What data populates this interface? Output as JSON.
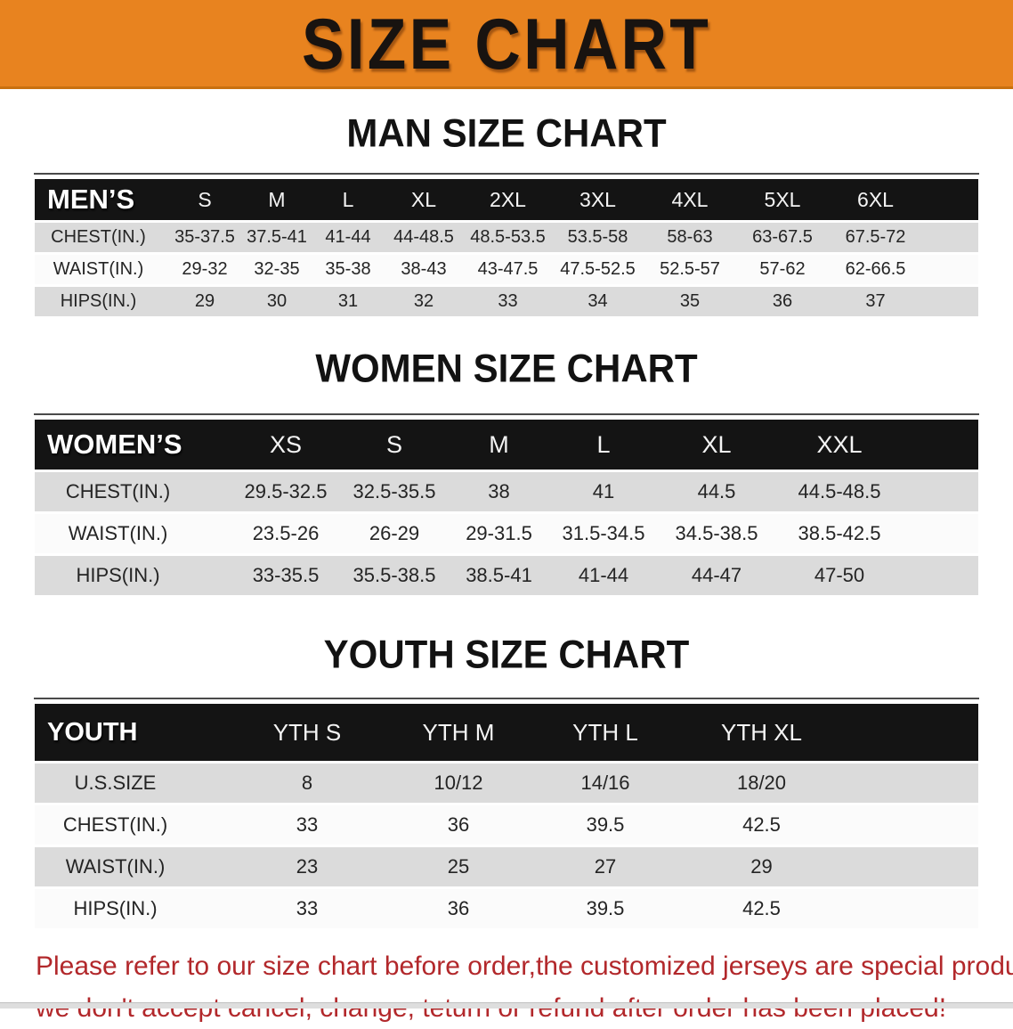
{
  "banner": {
    "title": "SIZE CHART",
    "background_color": "#E8831F",
    "title_color": "#181310"
  },
  "colors": {
    "table_header_bg": "#141414",
    "row_shade": "#DBDBDB",
    "disclaimer_red": "#B2282B"
  },
  "sections": [
    {
      "id": "men",
      "heading": "MAN SIZE CHART",
      "table": {
        "header_label": "MEN’S",
        "sizes": [
          "S",
          "M",
          "L",
          "XL",
          "2XL",
          "3XL",
          "4XL",
          "5XL",
          "6XL"
        ],
        "rows": [
          {
            "label": "CHEST(IN.)",
            "values": [
              "35-37.5",
              "37.5-41",
              "41-44",
              "44-48.5",
              "48.5-53.5",
              "53.5-58",
              "58-63",
              "63-67.5",
              "67.5-72"
            ]
          },
          {
            "label": "WAIST(IN.)",
            "values": [
              "29-32",
              "32-35",
              "35-38",
              "38-43",
              "43-47.5",
              "47.5-52.5",
              "52.5-57",
              "57-62",
              "62-66.5"
            ]
          },
          {
            "label": "HIPS(IN.)",
            "values": [
              "29",
              "30",
              "31",
              "32",
              "33",
              "34",
              "35",
              "36",
              "37"
            ]
          }
        ]
      }
    },
    {
      "id": "women",
      "heading": "WOMEN SIZE CHART",
      "table": {
        "header_label": "WOMEN’S",
        "sizes": [
          "XS",
          "S",
          "M",
          "L",
          "XL",
          "XXL"
        ],
        "rows": [
          {
            "label": "CHEST(IN.)",
            "values": [
              "29.5-32.5",
              "32.5-35.5",
              "38",
              "41",
              "44.5",
              "44.5-48.5"
            ]
          },
          {
            "label": "WAIST(IN.)",
            "values": [
              "23.5-26",
              "26-29",
              "29-31.5",
              "31.5-34.5",
              "34.5-38.5",
              "38.5-42.5"
            ]
          },
          {
            "label": "HIPS(IN.)",
            "values": [
              "33-35.5",
              "35.5-38.5",
              "38.5-41",
              "41-44",
              "44-47",
              "47-50"
            ]
          }
        ]
      }
    },
    {
      "id": "youth",
      "heading": "YOUTH SIZE CHART",
      "table": {
        "header_label": "YOUTH",
        "sizes": [
          "YTH S",
          "YTH M",
          "YTH L",
          "YTH XL"
        ],
        "rows": [
          {
            "label": "U.S.SIZE",
            "values": [
              "8",
              "10/12",
              "14/16",
              "18/20"
            ]
          },
          {
            "label": "CHEST(IN.)",
            "values": [
              "33",
              "36",
              "39.5",
              "42.5"
            ]
          },
          {
            "label": "WAIST(IN.)",
            "values": [
              "23",
              "25",
              "27",
              "29"
            ]
          },
          {
            "label": "HIPS(IN.)",
            "values": [
              "33",
              "36",
              "39.5",
              "42.5"
            ]
          }
        ]
      }
    }
  ],
  "disclaimer": {
    "line1": "Please refer to our size chart before order,the customized jerseys are special products,",
    "line2": "we don't accept cancel, change, teturn or refund after order has been placed!"
  }
}
